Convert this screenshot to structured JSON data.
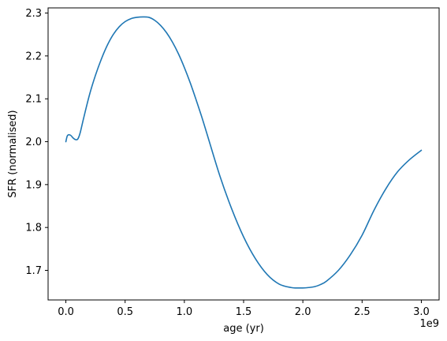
{
  "chart_data": {
    "type": "line",
    "title": "",
    "xlabel": "age (yr)",
    "ylabel": "SFR (normalised)",
    "x_offset_label": "1e9",
    "xlim": [
      -0.15,
      3.15
    ],
    "ylim": [
      1.631,
      2.312
    ],
    "x_ticks": [
      0.0,
      0.5,
      1.0,
      1.5,
      2.0,
      2.5,
      3.0
    ],
    "x_tick_labels": [
      "0.0",
      "0.5",
      "1.0",
      "1.5",
      "2.0",
      "2.5",
      "3.0"
    ],
    "y_ticks": [
      1.7,
      1.8,
      1.9,
      2.0,
      2.1,
      2.2,
      2.3
    ],
    "y_tick_labels": [
      "1.7",
      "1.8",
      "1.9",
      "2.0",
      "2.1",
      "2.2",
      "2.3"
    ],
    "grid": false,
    "legend": "none",
    "colors": {
      "line": "#1f77b4"
    },
    "series": [
      {
        "x": [
          0.0,
          0.01,
          0.02,
          0.04,
          0.06,
          0.08,
          0.1,
          0.12,
          0.15,
          0.2,
          0.25,
          0.3,
          0.35,
          0.4,
          0.45,
          0.5,
          0.55,
          0.6,
          0.65,
          0.7,
          0.75,
          0.8,
          0.85,
          0.9,
          0.95,
          1.0,
          1.05,
          1.1,
          1.15,
          1.2,
          1.3,
          1.4,
          1.5,
          1.6,
          1.7,
          1.8,
          1.9,
          1.95,
          2.0,
          2.05,
          2.1,
          2.15,
          2.2,
          2.3,
          2.4,
          2.5,
          2.6,
          2.7,
          2.8,
          2.9,
          3.0
        ],
        "y": [
          2.0,
          2.012,
          2.016,
          2.015,
          2.009,
          2.005,
          2.006,
          2.02,
          2.055,
          2.11,
          2.155,
          2.193,
          2.225,
          2.25,
          2.268,
          2.28,
          2.287,
          2.29,
          2.291,
          2.29,
          2.283,
          2.271,
          2.254,
          2.232,
          2.205,
          2.173,
          2.137,
          2.097,
          2.055,
          2.01,
          1.92,
          1.843,
          1.778,
          1.727,
          1.69,
          1.668,
          1.66,
          1.659,
          1.659,
          1.66,
          1.662,
          1.667,
          1.675,
          1.7,
          1.736,
          1.782,
          1.84,
          1.89,
          1.93,
          1.958,
          1.98
        ]
      }
    ]
  }
}
